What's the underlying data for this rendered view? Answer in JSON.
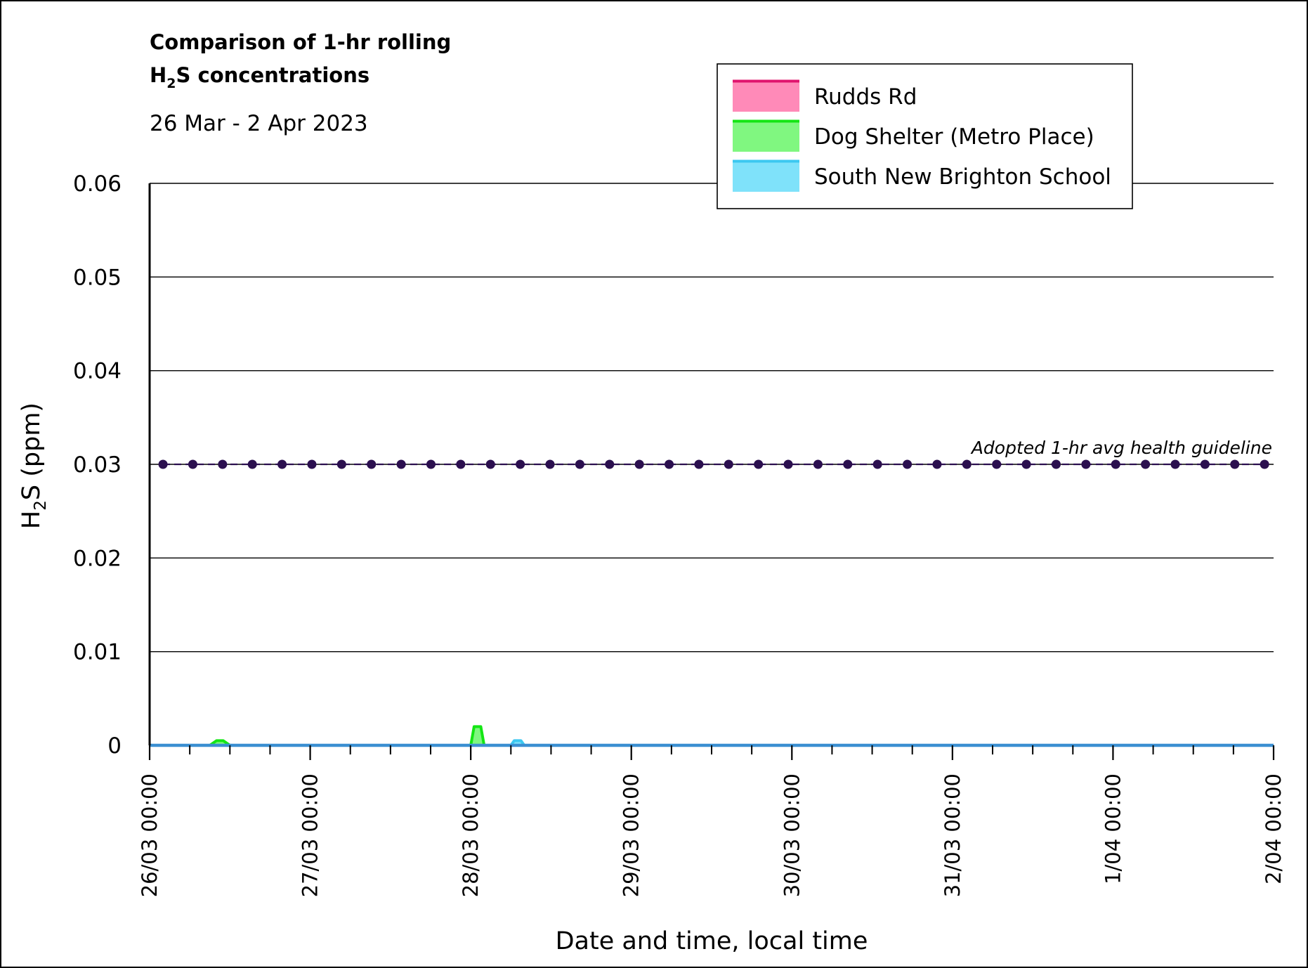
{
  "chart_data": {
    "type": "line",
    "title_line1": "Comparison of 1-hr rolling",
    "title_line2_main": "H",
    "title_line2_sub": "2",
    "title_line2_rest": "S concentrations",
    "subtitle": "26 Mar - 2 Apr 2023",
    "xlabel": "Date and time, local time",
    "ylabel_main": "H",
    "ylabel_sub": "2",
    "ylabel_rest": "S (ppm)",
    "ylim": [
      0,
      0.06
    ],
    "yticks": [
      "0",
      "0.01",
      "0.02",
      "0.03",
      "0.04",
      "0.05",
      "0.06"
    ],
    "ytick_values": [
      0,
      0.01,
      0.02,
      0.03,
      0.04,
      0.05,
      0.06
    ],
    "xlim": [
      "2023-03-26 00:00",
      "2023-04-02 00:00"
    ],
    "xticks": [
      "26/03 00:00",
      "27/03 00:00",
      "28/03 00:00",
      "29/03 00:00",
      "30/03 00:00",
      "31/03 00:00",
      "1/04 00:00",
      "2/04 00:00"
    ],
    "minor_ticks_per_day": 4,
    "grid": true,
    "legend_position": "top-right",
    "series": [
      {
        "name": "Rudds Rd",
        "line_color": "#e0146e",
        "fill_color": "#ff8ab8",
        "points": [
          [
            "2023-03-26 00:00",
            0
          ],
          [
            "2023-04-02 00:00",
            0
          ]
        ]
      },
      {
        "name": "Dog Shelter (Metro Place)",
        "line_color": "#14e614",
        "fill_color": "#80f780",
        "points": [
          [
            "2023-03-26 00:00",
            0
          ],
          [
            "2023-03-26 09:00",
            0
          ],
          [
            "2023-03-26 10:00",
            0.0005
          ],
          [
            "2023-03-26 11:00",
            0.0005
          ],
          [
            "2023-03-26 12:00",
            0
          ],
          [
            "2023-03-28 00:00",
            0
          ],
          [
            "2023-03-28 00:30",
            0.002
          ],
          [
            "2023-03-28 01:30",
            0.002
          ],
          [
            "2023-03-28 02:00",
            0
          ],
          [
            "2023-04-02 00:00",
            0
          ]
        ]
      },
      {
        "name": "South New Brighton School",
        "line_color": "#3cc8f0",
        "fill_color": "#7fe2fa",
        "points": [
          [
            "2023-03-26 00:00",
            0
          ],
          [
            "2023-03-28 06:00",
            0
          ],
          [
            "2023-03-28 06:30",
            0.0005
          ],
          [
            "2023-03-28 07:30",
            0.0005
          ],
          [
            "2023-03-28 08:00",
            0
          ],
          [
            "2023-04-02 00:00",
            0
          ]
        ]
      }
    ],
    "guideline": {
      "label": "Adopted 1-hr avg health guideline",
      "value": 0.03,
      "color": "#2b0f4f",
      "marker_start": "2023-03-26 02:00",
      "marker_interval_hours": 4.45,
      "marker_count": 38
    },
    "baseline_color": "#3b8fd1"
  }
}
